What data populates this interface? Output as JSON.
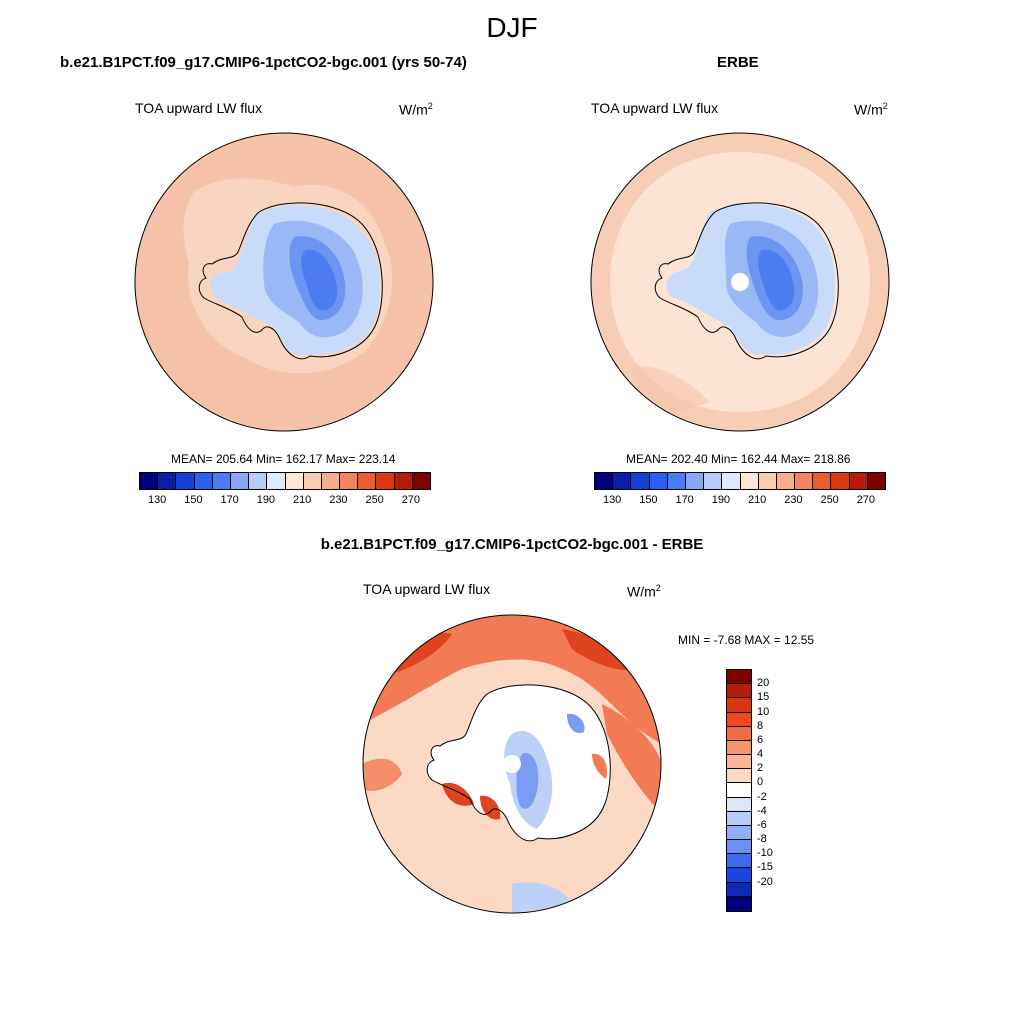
{
  "season": "DJF",
  "panels": [
    {
      "title": "b.e21.B1PCT.f09_g17.CMIP6-1pctCO2-bgc.001 (yrs 50-74)",
      "variable": "TOA upward LW flux",
      "units_base": "W/m",
      "units_exp": "2",
      "stats": "MEAN= 205.64  Min= 162.17  Max= 223.14"
    },
    {
      "title": "ERBE",
      "variable": "TOA upward LW flux",
      "units_base": "W/m",
      "units_exp": "2",
      "stats": "MEAN= 202.40  Min= 162.44  Max= 218.86"
    },
    {
      "title": "b.e21.B1PCT.f09_g17.CMIP6-1pctCO2-bgc.001 - ERBE",
      "variable": "TOA upward LW flux",
      "units_base": "W/m",
      "units_exp": "2",
      "stats": "MIN =  -7.68 MAX =  12.55"
    }
  ],
  "abs_colorbar": {
    "colors": [
      "#00007f",
      "#0a1ea8",
      "#1641d6",
      "#2b5ff0",
      "#4a7cf5",
      "#86a8f7",
      "#b7cdf9",
      "#dfeafc",
      "#fde6d8",
      "#fbcbb2",
      "#f8ad8d",
      "#f38660",
      "#ec5b32",
      "#da3612",
      "#b51d08",
      "#7f0000"
    ],
    "tick_labels": [
      "130",
      "150",
      "170",
      "190",
      "210",
      "230",
      "250",
      "270"
    ]
  },
  "diff_colorbar": {
    "colors": [
      "#7f0000",
      "#b51d08",
      "#d83510",
      "#f0481c",
      "#f36b43",
      "#f7956d",
      "#fab693",
      "#fcdac6",
      "#ffffff",
      "#dbe6fb",
      "#b7cdf9",
      "#90aff6",
      "#6a90f3",
      "#3d6bef",
      "#1d44e0",
      "#0e29b8",
      "#00007f"
    ],
    "tick_labels": [
      "20",
      "15",
      "10",
      "8",
      "6",
      "4",
      "2",
      "0",
      "-2",
      "-4",
      "-6",
      "-8",
      "-10",
      "-15",
      "-20"
    ]
  },
  "map_colors": {
    "ocean_model": "#f6c3aa",
    "ocean_obs": "#fce3d4",
    "ice_outer": "#c9dbfa",
    "ice_mid": "#9ab8f6",
    "ice_inner": "#6c95f2",
    "ice_core": "#4c7cf0",
    "diff_base": "#fbd9c4",
    "diff_warm": "#f27a54",
    "diff_hot": "#de4420",
    "diff_cool": "#bcd0f8",
    "diff_cold": "#7a9cf2"
  }
}
